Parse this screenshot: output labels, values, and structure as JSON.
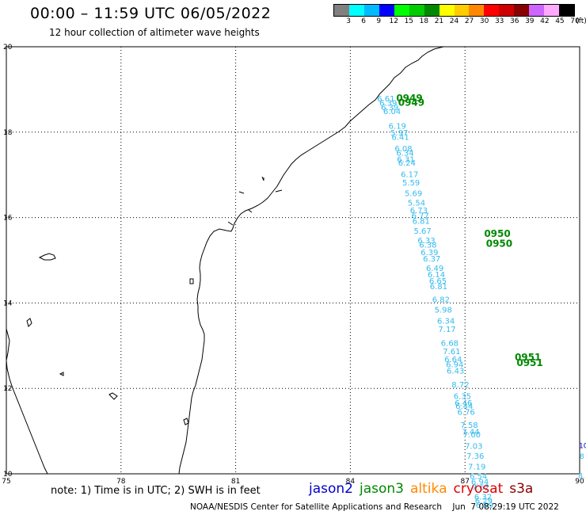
{
  "title": "00:00 – 11:59 UTC 06/05/2022",
  "subtitle": "12 hour collection of altimeter wave heights",
  "scale": {
    "unit": "(ft)",
    "colors": [
      "#808080",
      "#00ffff",
      "#00bbff",
      "#0000ff",
      "#00ff00",
      "#00cc00",
      "#008800",
      "#ffff00",
      "#ffcc00",
      "#ff8800",
      "#ff0000",
      "#cc0000",
      "#880000",
      "#cc66ff",
      "#ffaaff",
      "#000000"
    ],
    "labels": [
      "3",
      "6",
      "9",
      "12",
      "15",
      "18",
      "21",
      "24",
      "27",
      "30",
      "33",
      "36",
      "39",
      "42",
      "45",
      "70"
    ]
  },
  "axes": {
    "x_ticks": [
      "75",
      "78",
      "81",
      "84",
      "87",
      "90"
    ],
    "y_ticks": [
      "20",
      "18",
      "16",
      "14",
      "12",
      "10"
    ]
  },
  "map_data": {
    "lon_range": [
      75,
      90
    ],
    "lat_range": [
      10,
      20
    ],
    "track_color": "#33bbee",
    "time_color": "#008800",
    "track_points": [
      {
        "lon": 84.7,
        "lat": 18.72,
        "swh": "6.61"
      },
      {
        "lon": 84.76,
        "lat": 18.62,
        "swh": "6.39"
      },
      {
        "lon": 84.8,
        "lat": 18.52,
        "swh": "6.39"
      },
      {
        "lon": 84.86,
        "lat": 18.42,
        "swh": "6.04"
      },
      {
        "lon": 85.0,
        "lat": 18.08,
        "swh": "6.19"
      },
      {
        "lon": 85.05,
        "lat": 17.92,
        "swh": "5.97"
      },
      {
        "lon": 85.08,
        "lat": 17.82,
        "swh": "6.41"
      },
      {
        "lon": 85.16,
        "lat": 17.55,
        "swh": "6.08"
      },
      {
        "lon": 85.2,
        "lat": 17.45,
        "swh": "6.34"
      },
      {
        "lon": 85.22,
        "lat": 17.3,
        "swh": "6.31"
      },
      {
        "lon": 85.25,
        "lat": 17.22,
        "swh": "6.24"
      },
      {
        "lon": 85.32,
        "lat": 16.95,
        "swh": "6.17"
      },
      {
        "lon": 85.36,
        "lat": 16.75,
        "swh": "5.59"
      },
      {
        "lon": 85.42,
        "lat": 16.5,
        "swh": "5.69"
      },
      {
        "lon": 85.5,
        "lat": 16.28,
        "swh": "5.54"
      },
      {
        "lon": 85.56,
        "lat": 16.1,
        "swh": "6.73"
      },
      {
        "lon": 85.6,
        "lat": 15.98,
        "swh": "6.77"
      },
      {
        "lon": 85.62,
        "lat": 15.85,
        "swh": "6.81"
      },
      {
        "lon": 85.66,
        "lat": 15.62,
        "swh": "5.67"
      },
      {
        "lon": 85.76,
        "lat": 15.4,
        "swh": "6.33"
      },
      {
        "lon": 85.8,
        "lat": 15.3,
        "swh": "6.38"
      },
      {
        "lon": 85.84,
        "lat": 15.12,
        "swh": "6.39"
      },
      {
        "lon": 85.9,
        "lat": 14.97,
        "swh": "6.37"
      },
      {
        "lon": 85.98,
        "lat": 14.75,
        "swh": "6.49"
      },
      {
        "lon": 86.02,
        "lat": 14.6,
        "swh": "6.14"
      },
      {
        "lon": 86.06,
        "lat": 14.45,
        "swh": "6.65"
      },
      {
        "lon": 86.08,
        "lat": 14.32,
        "swh": "6.81"
      },
      {
        "lon": 86.14,
        "lat": 14.02,
        "swh": "6.82"
      },
      {
        "lon": 86.2,
        "lat": 13.78,
        "swh": "5.98"
      },
      {
        "lon": 86.27,
        "lat": 13.52,
        "swh": "6.34"
      },
      {
        "lon": 86.3,
        "lat": 13.32,
        "swh": "7.17"
      },
      {
        "lon": 86.37,
        "lat": 13.0,
        "swh": "6.68"
      },
      {
        "lon": 86.42,
        "lat": 12.8,
        "swh": "7.61"
      },
      {
        "lon": 86.46,
        "lat": 12.62,
        "swh": "6.64"
      },
      {
        "lon": 86.5,
        "lat": 12.5,
        "swh": "6.94"
      },
      {
        "lon": 86.52,
        "lat": 12.35,
        "swh": "6.43"
      },
      {
        "lon": 86.65,
        "lat": 12.02,
        "swh": "8.72"
      },
      {
        "lon": 86.7,
        "lat": 11.75,
        "swh": "6.35"
      },
      {
        "lon": 86.73,
        "lat": 11.6,
        "swh": "6.46"
      },
      {
        "lon": 86.75,
        "lat": 11.52,
        "swh": "6.44"
      },
      {
        "lon": 86.8,
        "lat": 11.38,
        "swh": "6.76"
      },
      {
        "lon": 86.88,
        "lat": 11.08,
        "swh": "7.58"
      },
      {
        "lon": 86.92,
        "lat": 10.92,
        "swh": "7.44"
      },
      {
        "lon": 86.95,
        "lat": 10.85,
        "swh": "7.00"
      },
      {
        "lon": 87.0,
        "lat": 10.58,
        "swh": "7.03"
      },
      {
        "lon": 87.04,
        "lat": 10.35,
        "swh": "7.36"
      },
      {
        "lon": 87.08,
        "lat": 10.1,
        "swh": "7.19"
      },
      {
        "lon": 87.12,
        "lat": 9.88,
        "swh": "6.54"
      },
      {
        "lon": 87.16,
        "lat": 9.75,
        "swh": "6.94"
      },
      {
        "lon": 87.18,
        "lat": 9.62,
        "swh": "7.62"
      },
      {
        "lon": 87.24,
        "lat": 9.4,
        "swh": "6.32"
      },
      {
        "lon": 87.26,
        "lat": 9.3,
        "swh": "6.29"
      },
      {
        "lon": 87.28,
        "lat": 9.2,
        "swh": "6.09"
      }
    ],
    "time_labels": [
      {
        "lon": 85.2,
        "lat": 18.72,
        "text": "0949"
      },
      {
        "lon": 85.25,
        "lat": 18.62,
        "text": "0949"
      },
      {
        "lon": 87.5,
        "lat": 15.55,
        "text": "0950"
      },
      {
        "lon": 87.55,
        "lat": 15.32,
        "text": "0950"
      },
      {
        "lon": 88.3,
        "lat": 12.65,
        "text": "0951"
      },
      {
        "lon": 88.35,
        "lat": 12.52,
        "text": "0951"
      }
    ],
    "edge_labels": [
      {
        "lon": 89.98,
        "lat": 10.6,
        "text": "10",
        "color": "#0000cc"
      },
      {
        "lon": 90.0,
        "lat": 10.35,
        "text": "8",
        "color": "#33bbee"
      },
      {
        "lon": 89.96,
        "lat": 9.9,
        "text": "8.",
        "color": "#33bbee"
      }
    ]
  },
  "note": "note: 1) Time is in UTC; 2) SWH is in feet",
  "satellites": [
    {
      "name": "jason2",
      "color": "#0000cc"
    },
    {
      "name": "jason3",
      "color": "#008800"
    },
    {
      "name": "altika",
      "color": "#ff8800"
    },
    {
      "name": "cryosat",
      "color": "#dd0000"
    },
    {
      "name": "s3a",
      "color": "#880000"
    }
  ],
  "credit": "NOAA/NESDIS Center for Satellite Applications and Research    Jun  7 08:29:19 UTC 2022"
}
